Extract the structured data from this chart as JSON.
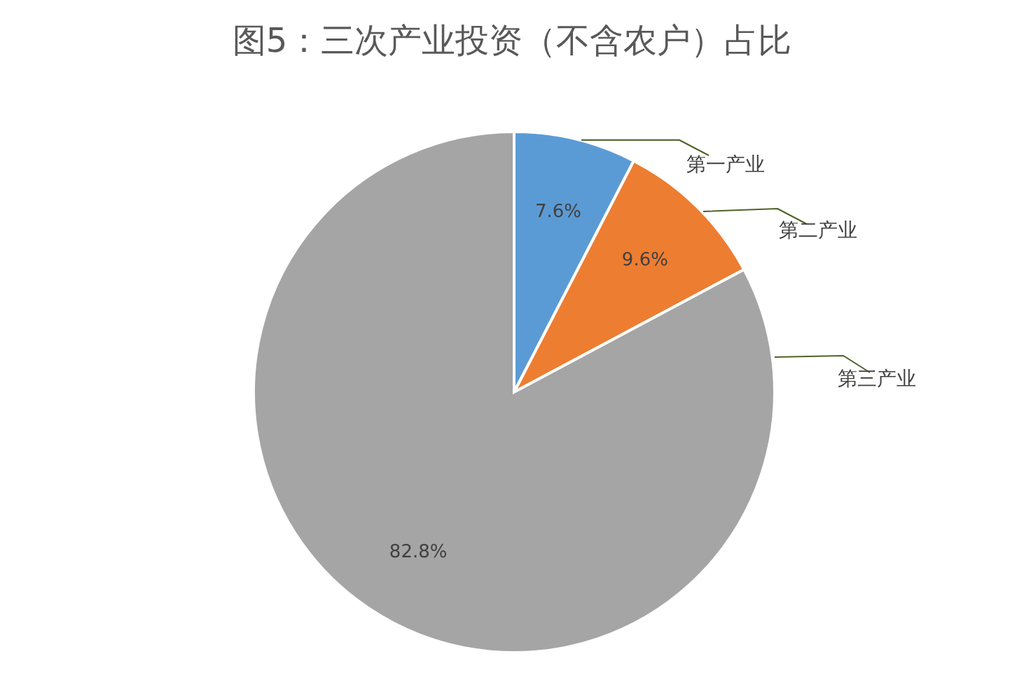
{
  "chart_data": {
    "type": "pie",
    "title": "图5：三次产业投资（不含农户）占比",
    "categories": [
      "第一产业",
      "第二产业",
      "第三产业"
    ],
    "values": [
      7.6,
      9.6,
      82.8
    ],
    "colors": [
      "#5b9bd5",
      "#ed7d31",
      "#a5a5a5"
    ],
    "value_labels": [
      "7.6%",
      "9.6%",
      "82.8%"
    ]
  }
}
